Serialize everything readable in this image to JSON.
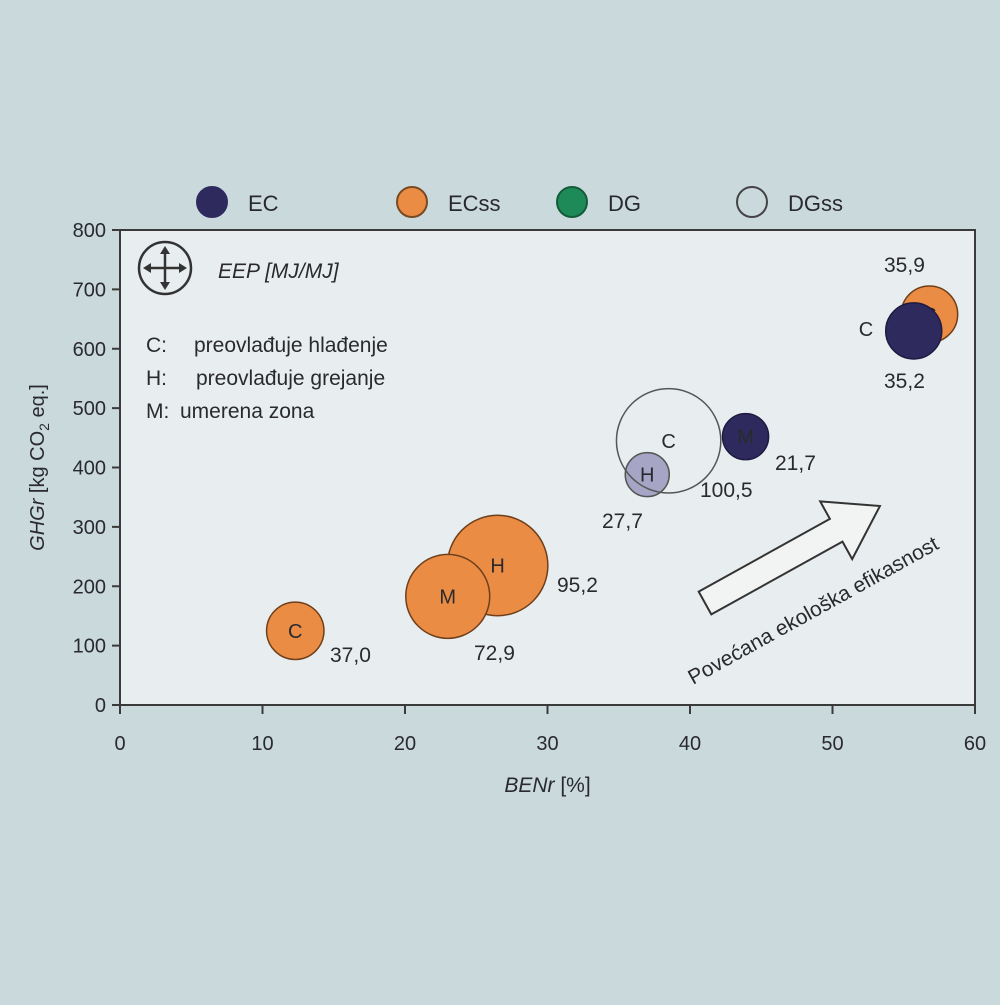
{
  "chart_data": {
    "type": "scatter",
    "subtype": "bubble",
    "xlabel_main": "BENr",
    "xlabel_unit": "[%]",
    "ylabel_main": "GHGr",
    "ylabel_unit": "[kg CO",
    "ylabel_sub": "2",
    "ylabel_end": " eq.]",
    "xlim": [
      0,
      60
    ],
    "ylim": [
      0,
      800
    ],
    "x_ticks": [
      "0",
      "10",
      "20",
      "30",
      "40",
      "50",
      "60"
    ],
    "y_ticks": [
      "0",
      "100",
      "200",
      "300",
      "400",
      "500",
      "600",
      "700",
      "800"
    ],
    "grid": false,
    "legend_position": "top",
    "legend": [
      {
        "label": "EC",
        "color": "#2f2a5e",
        "stroke": "#2f2a5e"
      },
      {
        "label": "ECss",
        "color": "#eb8c45",
        "stroke": "#7a4a20"
      },
      {
        "label": "DG",
        "color": "#1e8a57",
        "stroke": "#145c3a"
      },
      {
        "label": "DGss",
        "color": "none",
        "stroke": "#444444"
      }
    ],
    "size_legend_label": "EEP [MJ/MJ]",
    "zone_notes": [
      {
        "key": "C:",
        "text": "preovlađuje hlađenje"
      },
      {
        "key": "H:",
        "text": "preovlađuje grejanje"
      },
      {
        "key": "M:",
        "text": "umerena zona"
      }
    ],
    "arrow_label": "Povećana ekološka efikasnost",
    "series": [
      {
        "name": "EC",
        "color": "#2f2a5e",
        "points": [
          {
            "zone": "C",
            "x": 55.7,
            "y": 630,
            "eep": "35,2"
          },
          {
            "zone": "M",
            "x": 43.9,
            "y": 452,
            "eep": "21,7"
          }
        ]
      },
      {
        "name": "ECss",
        "color": "#eb8c45",
        "points": [
          {
            "zone": "C",
            "x": 56.8,
            "y": 658,
            "eep": "35,9"
          },
          {
            "zone": "C",
            "x": 12.3,
            "y": 125,
            "eep": "37,0"
          },
          {
            "zone": "M",
            "x": 23.0,
            "y": 183,
            "eep": "72,9"
          },
          {
            "zone": "H",
            "x": 26.5,
            "y": 235,
            "eep": "95,2"
          }
        ]
      },
      {
        "name": "DGss",
        "color": "none",
        "points": [
          {
            "zone": "C",
            "x": 38.5,
            "y": 445,
            "eep": "100,5"
          },
          {
            "zone": "H",
            "x": 37.0,
            "y": 388,
            "eep": "27,7"
          }
        ]
      }
    ]
  }
}
